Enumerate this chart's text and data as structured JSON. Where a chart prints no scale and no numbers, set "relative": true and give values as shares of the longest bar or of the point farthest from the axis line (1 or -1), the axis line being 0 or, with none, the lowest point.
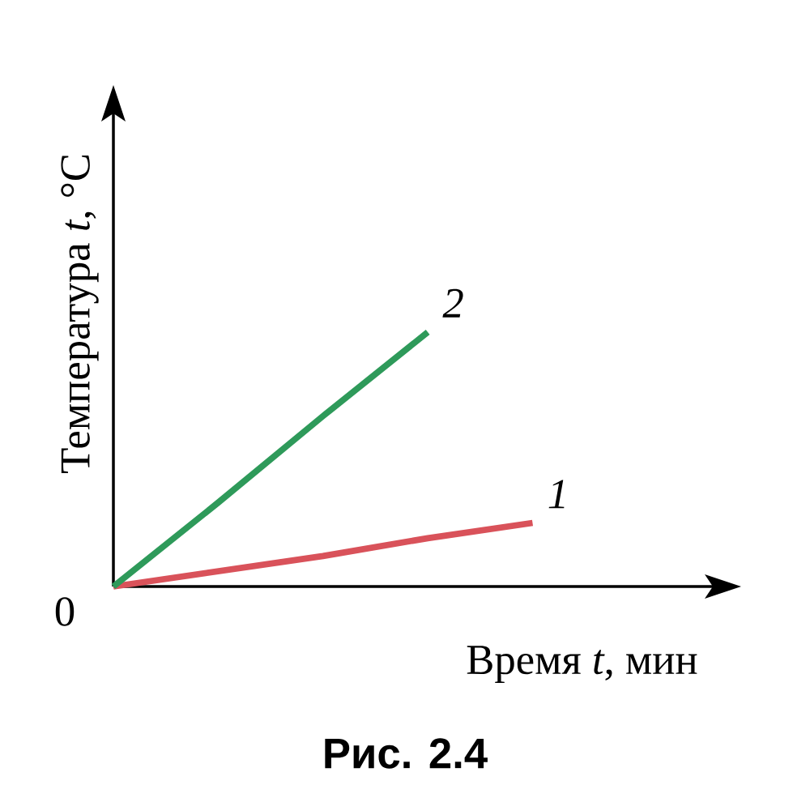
{
  "chart_data": {
    "type": "line",
    "relative": true,
    "xlabel": "Время *t*, мин",
    "ylabel": "Температура *t*, °C",
    "categories": [
      null,
      null,
      null,
      null,
      null
    ],
    "series": [
      {
        "name": "1",
        "color": "#d9525a",
        "values": [
          0,
          0.06,
          0.12,
          0.19,
          0.25
        ]
      },
      {
        "name": "2",
        "color": "#2e9a5a",
        "values": [
          0,
          0.33,
          0.67,
          1,
          null
        ]
      }
    ],
    "annotations": [
      "0",
      "Рис. 2.4"
    ],
    "legend": false
  }
}
